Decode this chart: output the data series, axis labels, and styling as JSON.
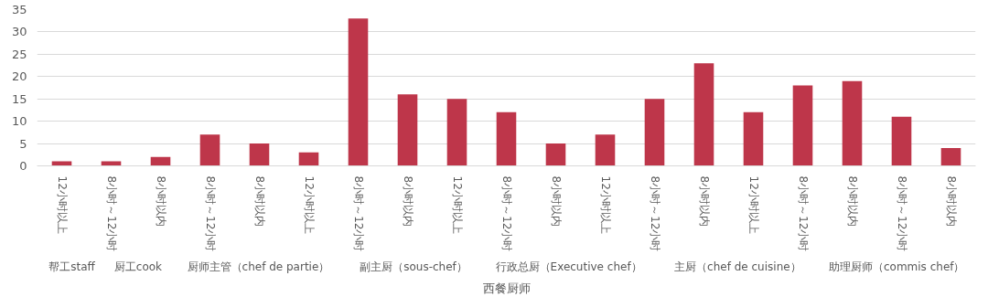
{
  "chart_data": {
    "type": "bar",
    "xlabel": "西餐厨师",
    "categories": [
      "12小时以上",
      "8小时～12小时",
      "8小时以内",
      "8小时～12小时",
      "8小时以内",
      "12小时以上",
      "8小时～12小时",
      "8小时以内",
      "12小时以上",
      "8小时～12小时",
      "8小时以内",
      "12小时以上",
      "8小时～12小时",
      "8小时以内",
      "12小时以上",
      "8小时～12小时",
      "8小时以内",
      "8小时～12小时",
      "8小时以内"
    ],
    "values": [
      1,
      1,
      2,
      7,
      5,
      3,
      33,
      16,
      15,
      12,
      5,
      7,
      15,
      23,
      12,
      18,
      19,
      11,
      4
    ],
    "color": "#be364a",
    "ylim": [
      0,
      35
    ],
    "yticks": [
      0,
      5,
      10,
      15,
      20,
      25,
      30,
      35
    ],
    "grid": "y",
    "annotations": [
      "帮工staff",
      "厨工cook",
      "厨师主管（chef de partie）",
      "副主厨（sous-chef）",
      "行政总厨（Executive chef）",
      "主厨（chef de cuisine）",
      "助理厨师（commis chef）"
    ]
  }
}
